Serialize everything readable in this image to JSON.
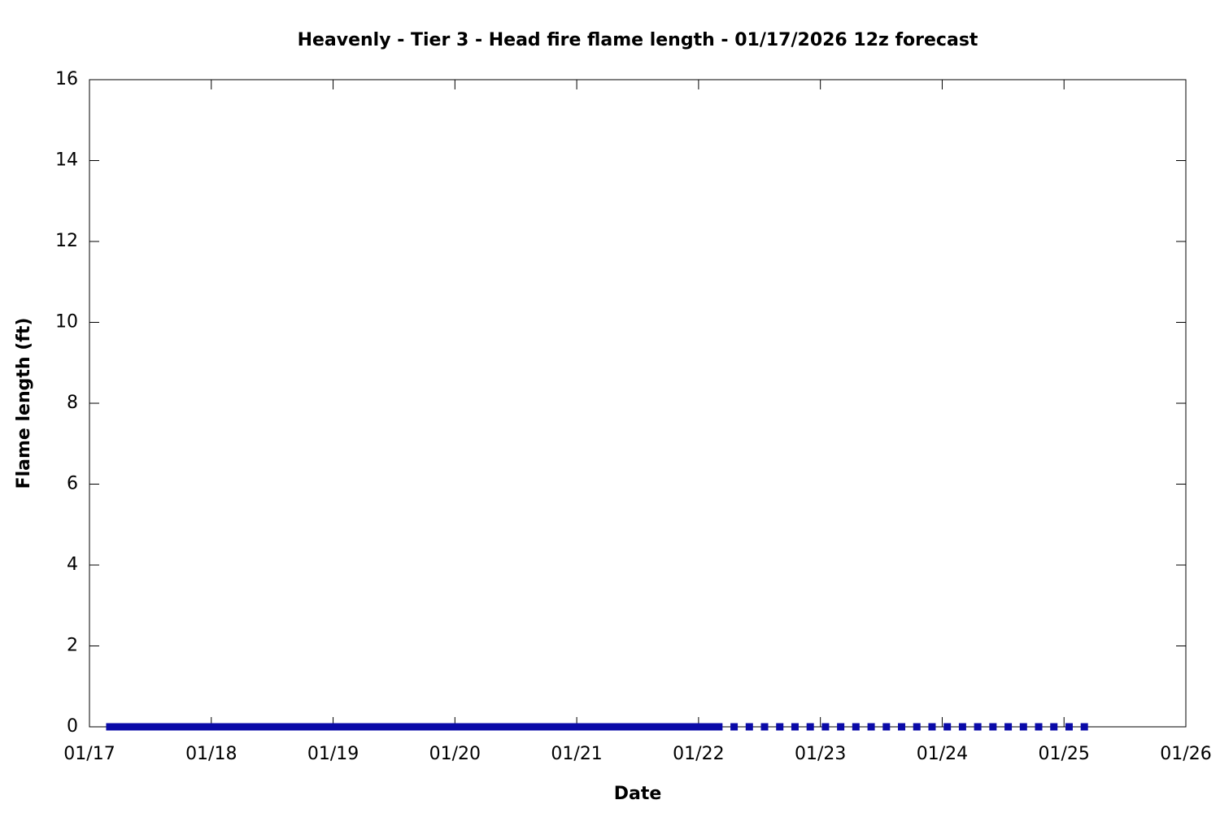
{
  "chart_data": {
    "type": "scatter",
    "title": "Heavenly - Tier 3 - Head fire flame length - 01/17/2026 12z forecast",
    "x_label": "Date",
    "y_label": "Flame length (ft)",
    "x": [
      4,
      5,
      6,
      7,
      8,
      9,
      10,
      11,
      12,
      13,
      14,
      15,
      16,
      17,
      18,
      19,
      20,
      21,
      22,
      23,
      24,
      25,
      26,
      27,
      28,
      29,
      30,
      31,
      32,
      33,
      34,
      35,
      36,
      37,
      38,
      39,
      40,
      41,
      42,
      43,
      44,
      45,
      46,
      47,
      48,
      49,
      50,
      51,
      52,
      53,
      54,
      55,
      56,
      57,
      58,
      59,
      60,
      61,
      62,
      63,
      64,
      65,
      66,
      67,
      68,
      69,
      70,
      71,
      72,
      73,
      74,
      75,
      76,
      77,
      78,
      79,
      80,
      81,
      82,
      83,
      84,
      85,
      86,
      87,
      88,
      89,
      90,
      91,
      92,
      93,
      94,
      95,
      96,
      97,
      98,
      99,
      100,
      101,
      102,
      103,
      104,
      105,
      106,
      107,
      108,
      109,
      110,
      111,
      112,
      113,
      114,
      115,
      116,
      117,
      118,
      119,
      120,
      121,
      122,
      123,
      124,
      127,
      130,
      133,
      136,
      139,
      142,
      145,
      148,
      151,
      154,
      157,
      160,
      163,
      166,
      169,
      172,
      175,
      178,
      181,
      184,
      187,
      190,
      193,
      196
    ],
    "series": [
      {
        "color": "#0a0aa8",
        "values": [
          0,
          0,
          0,
          0,
          0,
          0,
          0,
          0,
          0,
          0,
          0,
          0,
          0,
          0,
          0,
          0,
          0,
          0,
          0,
          0,
          0,
          0,
          0,
          0,
          0,
          0,
          0,
          0,
          0,
          0,
          0,
          0,
          0,
          0,
          0,
          0,
          0,
          0,
          0,
          0,
          0,
          0,
          0,
          0,
          0,
          0,
          0,
          0,
          0,
          0,
          0,
          0,
          0,
          0,
          0,
          0,
          0,
          0,
          0,
          0,
          0,
          0,
          0,
          0,
          0,
          0,
          0,
          0,
          0,
          0,
          0,
          0,
          0,
          0,
          0,
          0,
          0,
          0,
          0,
          0,
          0,
          0,
          0,
          0,
          0,
          0,
          0,
          0,
          0,
          0,
          0,
          0,
          0,
          0,
          0,
          0,
          0,
          0,
          0,
          0,
          0,
          0,
          0,
          0,
          0,
          0,
          0,
          0,
          0,
          0,
          0,
          0,
          0,
          0,
          0,
          0,
          0,
          0,
          0,
          0,
          0,
          0,
          0,
          0,
          0,
          0,
          0,
          0,
          0,
          0,
          0,
          0,
          0,
          0,
          0,
          0,
          0,
          0,
          0,
          0,
          0,
          0,
          0,
          0,
          0
        ]
      }
    ],
    "xlim": [
      0,
      216
    ],
    "xticks": [
      {
        "value": 0,
        "label": "01/17"
      },
      {
        "value": 24,
        "label": "01/18"
      },
      {
        "value": 48,
        "label": "01/19"
      },
      {
        "value": 72,
        "label": "01/20"
      },
      {
        "value": 96,
        "label": "01/21"
      },
      {
        "value": 120,
        "label": "01/22"
      },
      {
        "value": 144,
        "label": "01/23"
      },
      {
        "value": 168,
        "label": "01/24"
      },
      {
        "value": 192,
        "label": "01/25"
      },
      {
        "value": 216,
        "label": "01/26"
      }
    ],
    "ylim": [
      0,
      16
    ],
    "yticks": [
      0,
      2,
      4,
      6,
      8,
      10,
      12,
      14,
      16
    ],
    "grid": false
  }
}
